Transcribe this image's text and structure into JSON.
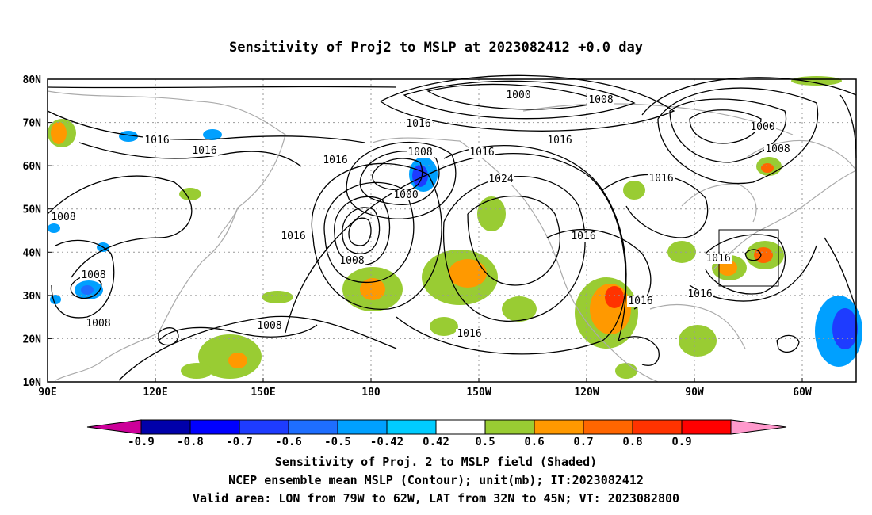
{
  "title": "Sensitivity of Proj2 to MSLP at 2023082412 +0.0 day",
  "map": {
    "lon_labels": [
      "90E",
      "120E",
      "150E",
      "180",
      "150W",
      "120W",
      "90W",
      "60W"
    ],
    "lat_labels": [
      "80N",
      "70N",
      "60N",
      "50N",
      "40N",
      "30N",
      "20N",
      "10N"
    ],
    "contour_labels": [
      "1000",
      "1008",
      "1016",
      "1024"
    ],
    "valid_area": {
      "lon": [
        "79W",
        "62W"
      ],
      "lat": [
        "32N",
        "45N"
      ]
    }
  },
  "colorbar": {
    "labels": [
      "-0.9",
      "-0.8",
      "-0.7",
      "-0.6",
      "-0.5",
      "-0.42",
      "0.42",
      "0.5",
      "0.6",
      "0.7",
      "0.8",
      "0.9"
    ],
    "colors": [
      "#cc0099",
      "#0000aa",
      "#0000ff",
      "#1e3cff",
      "#1e6eff",
      "#00a0ff",
      "#00ccff",
      "#ffffff",
      "#99cc33",
      "#ff9900",
      "#ff6600",
      "#ff3300",
      "#ff0000",
      "#ff99cc"
    ]
  },
  "captions": {
    "line1": "Sensitivity of Proj. 2 to MSLP field (Shaded)",
    "line2": "NCEP ensemble mean MSLP (Contour); unit(mb); IT:2023082412",
    "line3": "Valid area: LON from 79W to 62W, LAT from 32N to 45N; VT: 2023082800"
  }
}
